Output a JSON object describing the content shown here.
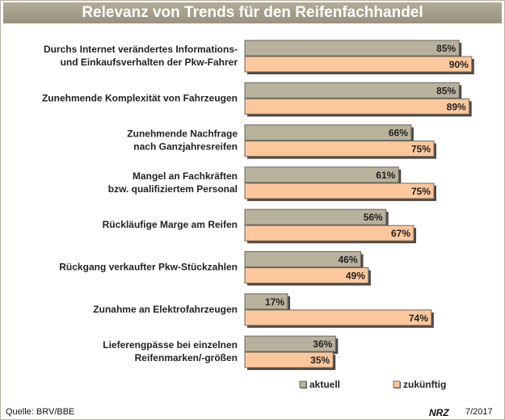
{
  "chart_data": {
    "type": "bar",
    "orientation": "horizontal",
    "title": "Relevanz von Trends für den Reifenfachhandel",
    "categories": [
      [
        "Durchs Internet verändertes Informations-",
        "und Einkaufsverhalten der Pkw-Fahrer"
      ],
      [
        "Zunehmende Komplexität von Fahrzeugen"
      ],
      [
        "Zunehmende Nachfrage",
        "nach Ganzjahresreifen"
      ],
      [
        "Mangel an Fachkräften",
        "bzw. qualifiziertem Personal"
      ],
      [
        "Rückläufige Marge am Reifen"
      ],
      [
        "Rückgang verkaufter Pkw-Stückzahlen"
      ],
      [
        "Zunahme an Elektrofahrzeugen"
      ],
      [
        "Lieferengpässe bei einzelnen",
        "Reifenmarken/-größen"
      ]
    ],
    "series": [
      {
        "name": "aktuell",
        "color": "#b8b19c",
        "values": [
          85,
          85,
          66,
          61,
          56,
          46,
          17,
          36
        ]
      },
      {
        "name": "zukünftig",
        "color": "#fdc79c",
        "values": [
          90,
          89,
          75,
          75,
          67,
          49,
          74,
          35
        ]
      }
    ],
    "value_suffix": "%",
    "xlim": [
      0,
      100
    ],
    "grid": false,
    "legend_position": "bottom-right",
    "source": "Quelle: BRV/BBE",
    "brand": "NRZ",
    "issue": "7/2017"
  }
}
